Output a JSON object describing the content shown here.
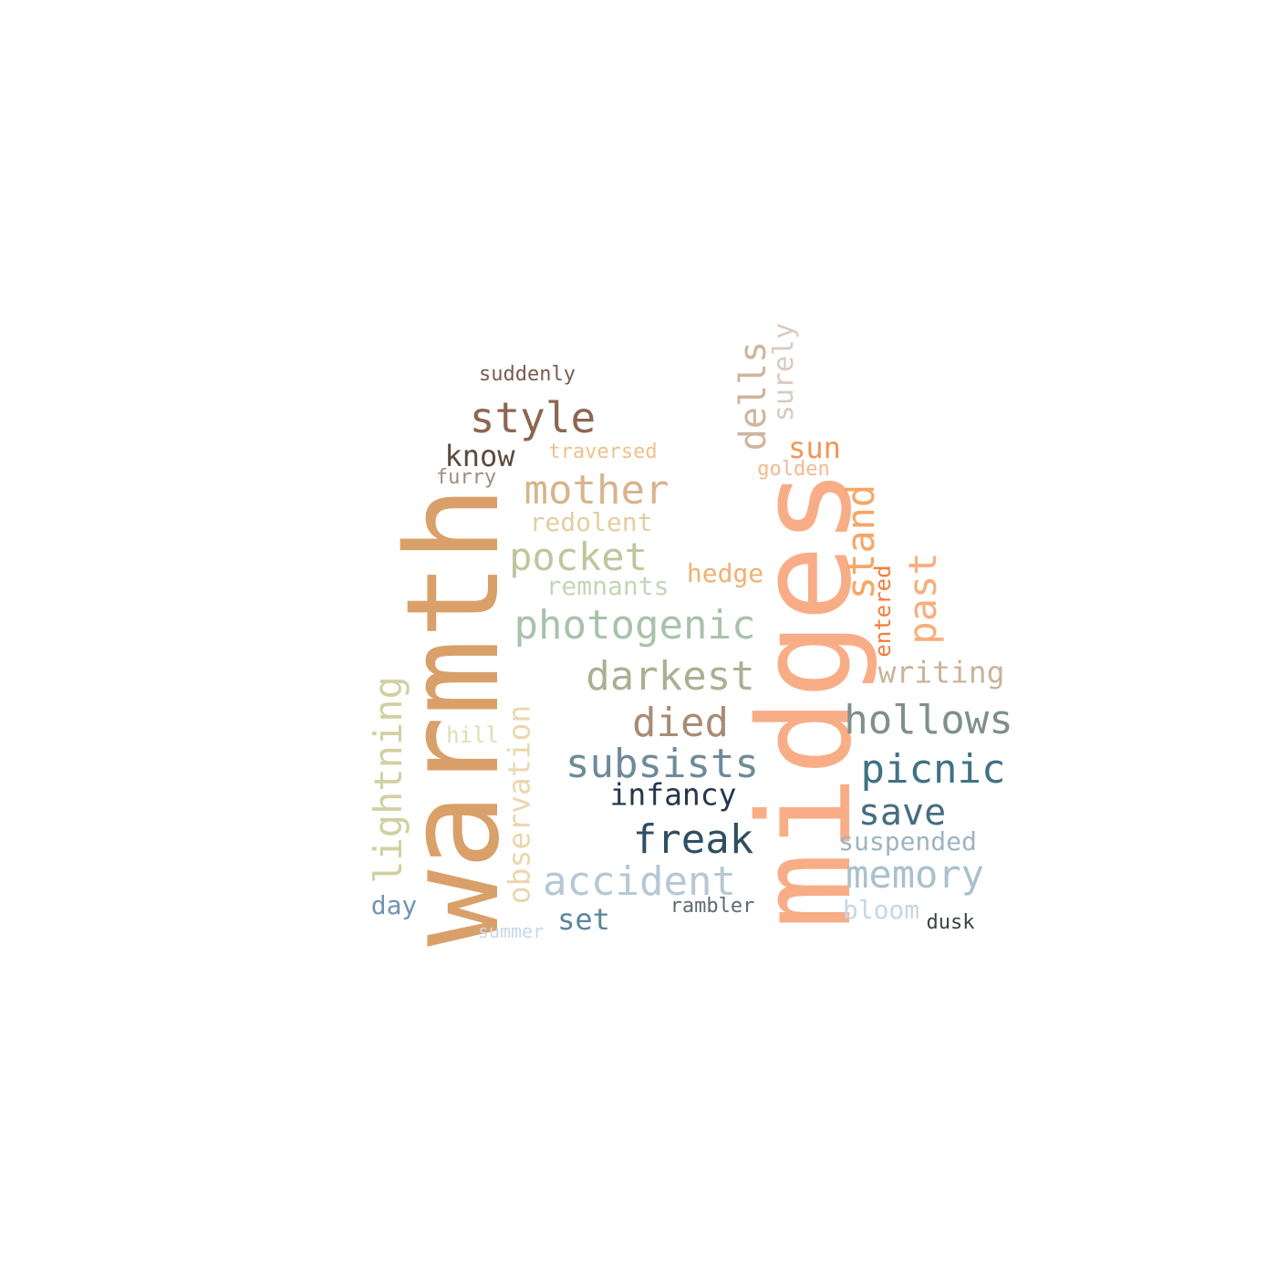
{
  "words": {
    "warmth": {
      "text": "warmth",
      "color": "#D9A06A"
    },
    "midges": {
      "text": "midges",
      "color": "#F8AD86"
    },
    "style": {
      "text": "style",
      "color": "#8C6651"
    },
    "mother": {
      "text": "mother",
      "color": "#D8B48B"
    },
    "pocket": {
      "text": "pocket",
      "color": "#BFC69C"
    },
    "photogenic": {
      "text": "photogenic",
      "color": "#A9C2AB"
    },
    "darkest": {
      "text": "darkest",
      "color": "#AAB091"
    },
    "died": {
      "text": "died",
      "color": "#A78C75"
    },
    "hollows": {
      "text": "hollows",
      "color": "#7E9089"
    },
    "subsists": {
      "text": "subsists",
      "color": "#6E8A99"
    },
    "picnic": {
      "text": "picnic",
      "color": "#3F7284"
    },
    "freak": {
      "text": "freak",
      "color": "#2F4E63"
    },
    "accident": {
      "text": "accident",
      "color": "#B5C8D4"
    },
    "memory": {
      "text": "memory",
      "color": "#A9C1CB"
    },
    "save": {
      "text": "save",
      "color": "#456D80"
    },
    "lightning": {
      "text": "lightning",
      "color": "#D0D0A2"
    },
    "observation": {
      "text": "observation",
      "color": "#EAD7AE"
    },
    "dells": {
      "text": "dells",
      "color": "#CEB69D"
    },
    "surely": {
      "text": "surely",
      "color": "#D8CAC2"
    },
    "stand": {
      "text": "stand",
      "color": "#F7A664"
    },
    "past": {
      "text": "past",
      "color": "#F8AE7C"
    },
    "entered": {
      "text": "entered",
      "color": "#F57A38"
    },
    "writing": {
      "text": "writing",
      "color": "#C9B497"
    },
    "sun": {
      "text": "sun",
      "color": "#F29654"
    },
    "golden": {
      "text": "golden",
      "color": "#F5B890"
    },
    "hedge": {
      "text": "hedge",
      "color": "#F1B072"
    },
    "know": {
      "text": "know",
      "color": "#5C4B3E"
    },
    "traversed": {
      "text": "traversed",
      "color": "#EFC08C"
    },
    "furry": {
      "text": "furry",
      "color": "#9F8D7E"
    },
    "suddenly": {
      "text": "suddenly",
      "color": "#7A5B4E"
    },
    "redolent": {
      "text": "redolent",
      "color": "#E2CFA0"
    },
    "remnants": {
      "text": "remnants",
      "color": "#C2D7B5"
    },
    "infancy": {
      "text": "infancy",
      "color": "#24374D"
    },
    "suspended": {
      "text": "suspended",
      "color": "#9DB4C1"
    },
    "hill": {
      "text": "hill",
      "color": "#DFDDB1"
    },
    "day": {
      "text": "day",
      "color": "#7394AE"
    },
    "set": {
      "text": "set",
      "color": "#5C869C"
    },
    "rambler": {
      "text": "rambler",
      "color": "#5F6A70"
    },
    "bloom": {
      "text": "bloom",
      "color": "#C6D7E3"
    },
    "dusk": {
      "text": "dusk",
      "color": "#3A4346"
    },
    "summer": {
      "text": "summer",
      "color": "#C8D8EA"
    }
  }
}
